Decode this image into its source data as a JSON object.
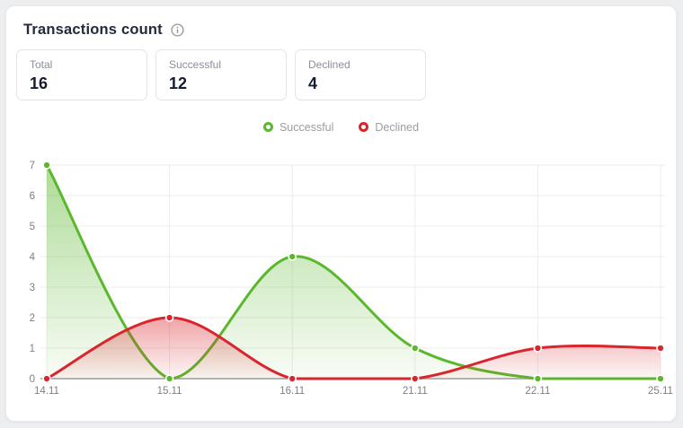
{
  "header": {
    "title": "Transactions count"
  },
  "stats": [
    {
      "label": "Total",
      "value": "16"
    },
    {
      "label": "Successful",
      "value": "12"
    },
    {
      "label": "Declined",
      "value": "4"
    }
  ],
  "colors": {
    "successful": "#5bb82d",
    "declined": "#d8262c",
    "title_text": "#232b3b",
    "muted_text": "#8a8f99",
    "axis_text": "#7c7f84",
    "grid_line": "#ececec",
    "axis_line": "#b5b5b5",
    "card_border": "#e3e4e8"
  },
  "chart_data": {
    "type": "area",
    "curve": "smooth",
    "title": "Transactions count",
    "categories": [
      "14.11",
      "15.11",
      "16.11",
      "21.11",
      "22.11",
      "25.11"
    ],
    "series": [
      {
        "name": "Successful",
        "color": "#5bb82d",
        "values": [
          7,
          0,
          4,
          1,
          0,
          0
        ]
      },
      {
        "name": "Declined",
        "color": "#d8262c",
        "values": [
          0,
          2,
          0,
          0,
          1,
          1
        ]
      }
    ],
    "xlabel": "",
    "ylabel": "",
    "ylim": [
      0,
      7
    ],
    "yticks": [
      0,
      1,
      2,
      3,
      4,
      5,
      6,
      7
    ],
    "grid": true,
    "legend_position": "top"
  }
}
